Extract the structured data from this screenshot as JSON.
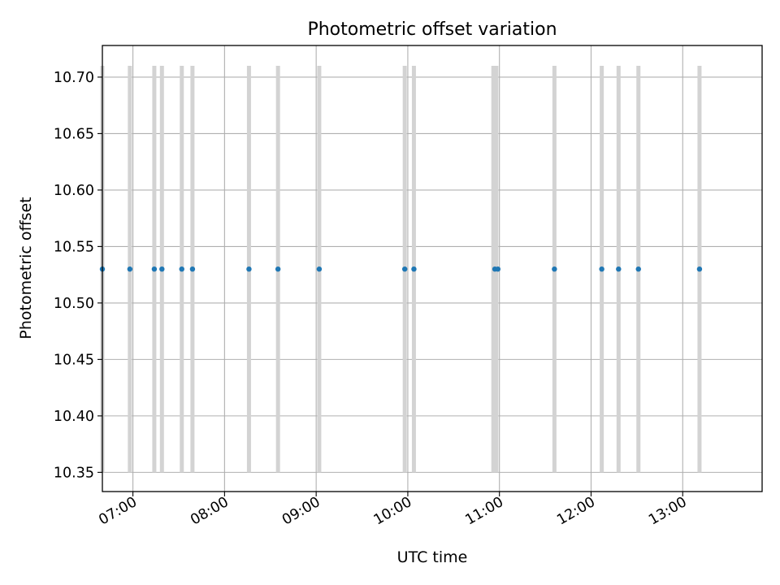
{
  "chart_data": {
    "type": "scatter",
    "title": "Photometric offset variation",
    "xlabel": "UTC time",
    "ylabel": "Photometric offset",
    "x_unit": "UTC time of day (HH:MM)",
    "xlim": [
      "06:40",
      "13:52"
    ],
    "ylim": [
      10.333,
      10.728
    ],
    "grid": true,
    "x_ticks": [
      "07:00",
      "08:00",
      "09:00",
      "10:00",
      "11:00",
      "12:00",
      "13:00"
    ],
    "y_ticks": [
      "10.35",
      "10.40",
      "10.45",
      "10.50",
      "10.55",
      "10.60",
      "10.65",
      "10.70"
    ],
    "points": {
      "x": [
        "06:40",
        "06:58",
        "07:14",
        "07:19",
        "07:32",
        "07:39",
        "08:16",
        "08:35",
        "09:02",
        "09:58",
        "10:04",
        "10:57",
        "10:59",
        "11:36",
        "12:07",
        "12:18",
        "12:31",
        "13:11"
      ],
      "y": [
        10.53,
        10.53,
        10.53,
        10.53,
        10.53,
        10.53,
        10.53,
        10.53,
        10.53,
        10.53,
        10.53,
        10.53,
        10.53,
        10.53,
        10.53,
        10.53,
        10.53,
        10.53
      ]
    },
    "vertical_bands": {
      "y_range": [
        10.35,
        10.71
      ],
      "x": [
        "06:40",
        "06:58",
        "07:14",
        "07:19",
        "07:32",
        "07:39",
        "08:16",
        "08:35",
        "09:02",
        "09:58",
        "10:04",
        "10:56",
        "10:58",
        "11:36",
        "12:07",
        "12:18",
        "12:31",
        "13:11"
      ]
    },
    "colors": {
      "points": "#1f77b4",
      "bands": "#d3d3d3",
      "grid": "#b0b0b0",
      "axes": "#000000"
    }
  }
}
